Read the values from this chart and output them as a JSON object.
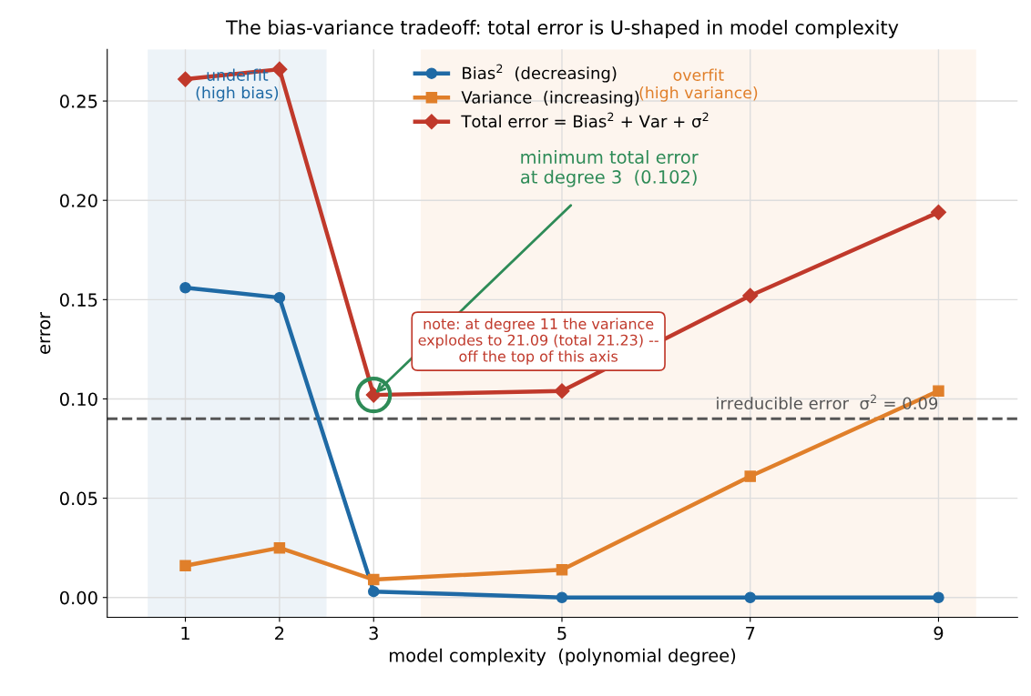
{
  "chart_data": {
    "type": "line",
    "title": "The bias-variance tradeoff: total error is U-shaped in model complexity",
    "xlabel": "model complexity  (polynomial degree)",
    "ylabel": "error",
    "x": [
      1,
      2,
      3,
      5,
      7,
      9
    ],
    "series": [
      {
        "name": "Bias$^{2}$  (decreasing)",
        "color": "#1f6aa5",
        "marker": "circle",
        "values": [
          0.156,
          0.151,
          0.003,
          0.0,
          0.0,
          0.0
        ]
      },
      {
        "name": "Variance  (increasing)",
        "color": "#e07f2a",
        "marker": "square",
        "values": [
          0.016,
          0.025,
          0.009,
          0.014,
          0.061,
          0.104
        ]
      },
      {
        "name": "Total error = Bias$^{2}$ + Var + σ$^{2}$",
        "color": "#c0392b",
        "marker": "diamond",
        "values": [
          0.261,
          0.266,
          0.102,
          0.104,
          0.152,
          0.194
        ]
      }
    ],
    "xlim": [
      0.17,
      9.84
    ],
    "ylim": [
      -0.01,
      0.276
    ],
    "xticks": [
      1,
      2,
      3,
      5,
      7,
      9
    ],
    "yticks": [
      {
        "value": 0,
        "label": "0.00"
      },
      {
        "value": 0.05,
        "label": "0.05"
      },
      {
        "value": 0.1,
        "label": "0.10"
      },
      {
        "value": 0.15,
        "label": "0.15"
      },
      {
        "value": 0.2,
        "label": "0.20"
      },
      {
        "value": 0.25,
        "label": "0.25"
      }
    ],
    "ref_lines": [
      {
        "axis": "y",
        "value": 0.09,
        "label": "irreducible error  σ$^{2}$ = 0.09",
        "color": "#555555",
        "line_style": "dashed"
      }
    ],
    "bands": [
      {
        "axis": "x",
        "from": 0.6,
        "to": 2.5,
        "label": "underfit\n(high bias)",
        "color": "#1f6aa5"
      },
      {
        "axis": "x",
        "from": 3.5,
        "to": 9.4,
        "label": "overfit\n(high variance)",
        "color": "#e07f2a"
      }
    ],
    "annotations": [
      {
        "text": "minimum total error\nat degree 3  (0.102)",
        "x": 3,
        "y": 0.102
      },
      "note: at degree 11 the variance\nexplodes to 21.09 (total 21.23) --\noff the top of this axis"
    ],
    "grid": true,
    "legend": "top",
    "line_style": "solid"
  }
}
